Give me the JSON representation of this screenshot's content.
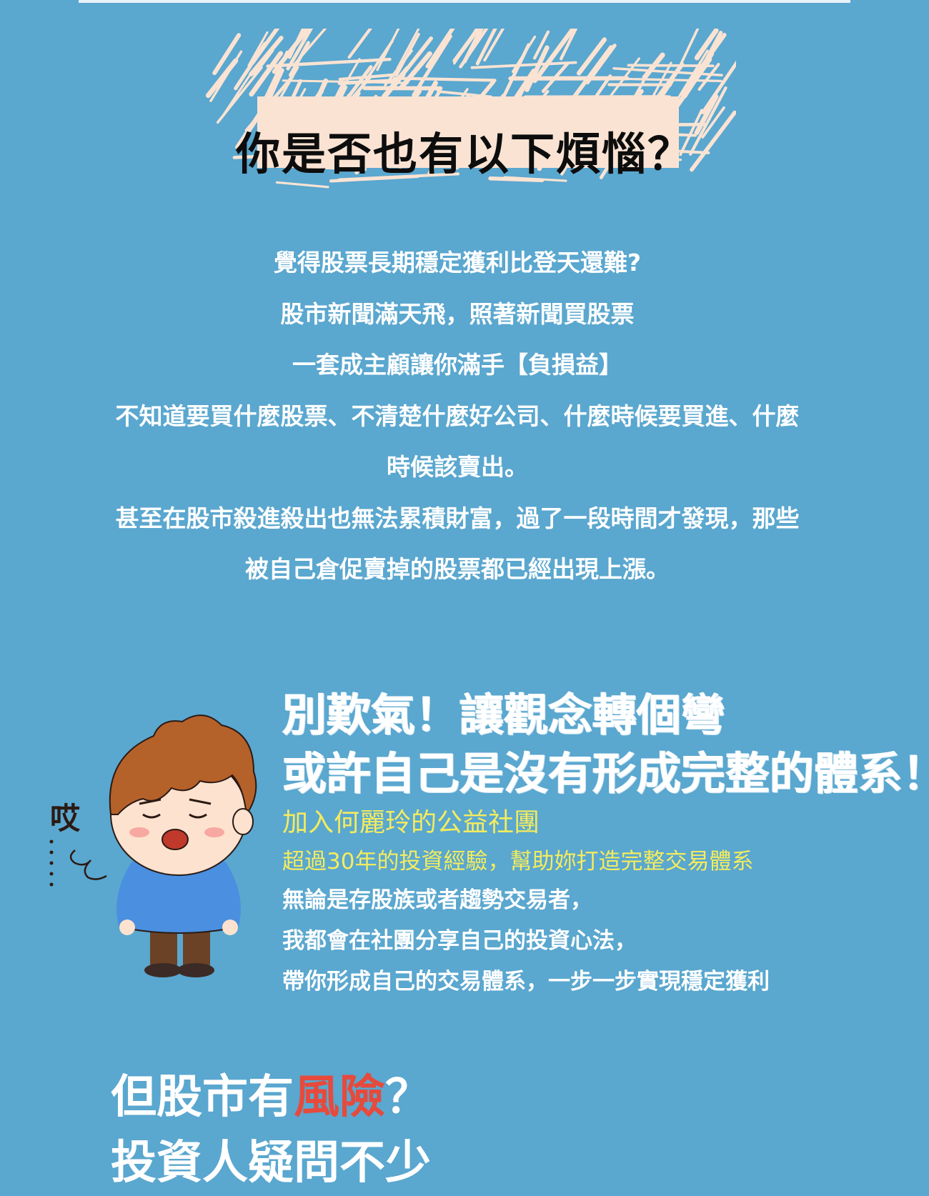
{
  "colors": {
    "background": "#5aa7cf",
    "banner_paper": "#fae3d3",
    "highlight_yellow": "#f4ec5e",
    "risk_red": "#e64a3c"
  },
  "banner": {
    "title": "你是否也有以下煩惱？"
  },
  "intro": {
    "lines": [
      "覺得股票長期穩定獲利比登天還難?",
      "股市新聞滿天飛，照著新聞買股票",
      "一套成主顧讓你滿手【負損益】",
      "不知道要買什麼股票、不清楚什麼好公司、什麼時候要買進、什麼",
      "時候該賣出。",
      "甚至在股市殺進殺出也無法累積財富，過了一段時間才發現，那些",
      "被自己倉促賣掉的股票都已經出現上漲。"
    ]
  },
  "illustration": {
    "icon": "sighing-boy-icon",
    "sigh_text": "哎"
  },
  "headline": {
    "line1": "別歎氣！讓觀念轉個彎",
    "line2": "或許自己是沒有形成完整的體系！"
  },
  "highlight": {
    "group": "加入何麗玲的公益社團",
    "experience": "超過30年的投資經驗，幫助妳打造完整交易體系"
  },
  "body": {
    "lines": [
      "無論是存股族或者趨勢交易者，",
      "我都會在社團分享自己的投資心法，",
      "帶你形成自己的交易體系，一步一步實現穩定獲利"
    ]
  },
  "risk": {
    "line1_before": "但股市有",
    "line1_red": "風險",
    "line1_after": "？",
    "line2": "投資人疑問不少"
  }
}
